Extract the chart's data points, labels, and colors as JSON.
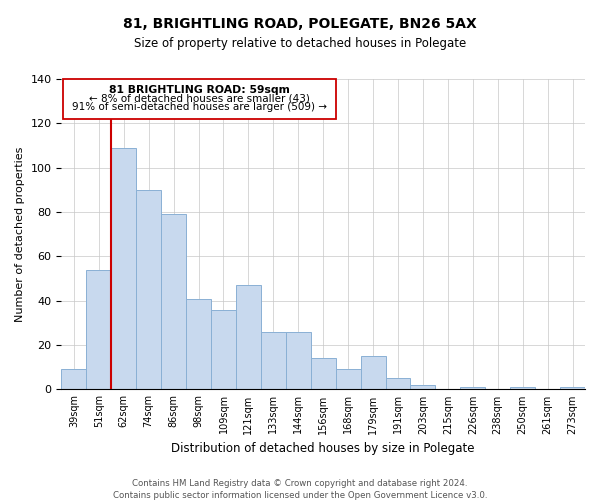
{
  "title": "81, BRIGHTLING ROAD, POLEGATE, BN26 5AX",
  "subtitle": "Size of property relative to detached houses in Polegate",
  "xlabel": "Distribution of detached houses by size in Polegate",
  "ylabel": "Number of detached properties",
  "bar_labels": [
    "39sqm",
    "51sqm",
    "62sqm",
    "74sqm",
    "86sqm",
    "98sqm",
    "109sqm",
    "121sqm",
    "133sqm",
    "144sqm",
    "156sqm",
    "168sqm",
    "179sqm",
    "191sqm",
    "203sqm",
    "215sqm",
    "226sqm",
    "238sqm",
    "250sqm",
    "261sqm",
    "273sqm"
  ],
  "bar_values": [
    9,
    54,
    109,
    90,
    79,
    41,
    36,
    47,
    26,
    26,
    14,
    9,
    15,
    5,
    2,
    0,
    1,
    0,
    1,
    0,
    1
  ],
  "bar_color": "#c8d9ee",
  "bar_edge_color": "#8ab0d4",
  "vline_color": "#cc0000",
  "vline_x_index": 1.5,
  "ylim": [
    0,
    140
  ],
  "yticks": [
    0,
    20,
    40,
    60,
    80,
    100,
    120,
    140
  ],
  "annotation_title": "81 BRIGHTLING ROAD: 59sqm",
  "annotation_line1": "← 8% of detached houses are smaller (43)",
  "annotation_line2": "91% of semi-detached houses are larger (509) →",
  "footer_line1": "Contains HM Land Registry data © Crown copyright and database right 2024.",
  "footer_line2": "Contains public sector information licensed under the Open Government Licence v3.0.",
  "bg_color": "#ffffff"
}
